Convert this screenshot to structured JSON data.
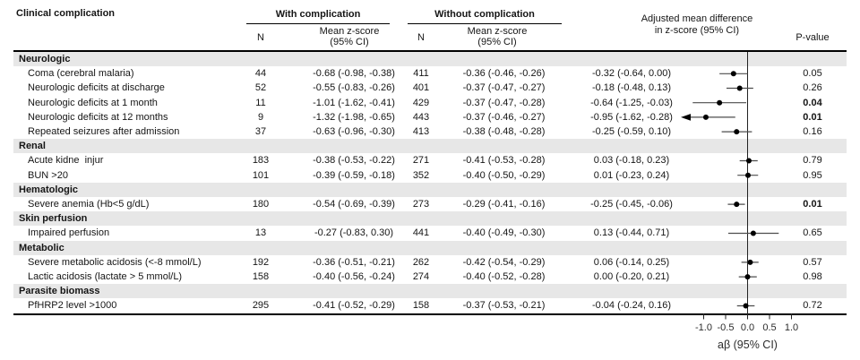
{
  "header": {
    "clinical_complication": "Clinical complication",
    "with_group": "With complication",
    "without_group": "Without complication",
    "n_with": "N",
    "n_without": "N",
    "mean_line1": "Mean z-score",
    "mean_line2": "(95% CI)",
    "adjusted_line1": "Adjusted mean difference",
    "adjusted_line2": "in z-score (95% CI)",
    "pvalue": "P-value"
  },
  "axis": {
    "tick_labels": [
      "-1.0",
      "-0.5",
      "0.0",
      "0.5",
      "1.0"
    ],
    "tick_values": [
      -1.0,
      -0.5,
      0.0,
      0.5,
      1.0
    ],
    "label": "aβ (95% CI)"
  },
  "colors": {
    "section_bg": "#e7e7e7",
    "text": "#151515",
    "ci_line": "#4d4d4d",
    "point": "#000000",
    "axis_line": "#222222"
  },
  "chart_data": {
    "type": "forest",
    "xlabel": "aβ (95% CI)",
    "xticks": [
      -1.0,
      -0.5,
      0.0,
      0.5,
      1.0
    ],
    "xlim": [
      -1.55,
      1.1
    ],
    "rows": [
      {
        "type": "section",
        "label": "Neurologic"
      },
      {
        "type": "data",
        "label": "Coma (cerebral malaria)",
        "n_with": "44",
        "mean_with": "-0.68 (-0.98, -0.38)",
        "n_without": "411",
        "mean_without": "-0.36 (-0.46, -0.26)",
        "adjusted": "-0.32 (-0.64, 0.00)",
        "est": -0.32,
        "lo": -0.64,
        "hi": 0.0,
        "p": "0.05",
        "p_bold": false
      },
      {
        "type": "data",
        "label": "Neurologic deficits at discharge",
        "n_with": "52",
        "mean_with": "-0.55 (-0.83, -0.26)",
        "n_without": "401",
        "mean_without": "-0.37 (-0.47, -0.27)",
        "adjusted": "-0.18 (-0.48, 0.13)",
        "est": -0.18,
        "lo": -0.48,
        "hi": 0.13,
        "p": "0.26",
        "p_bold": false
      },
      {
        "type": "data",
        "label": "Neurologic deficits at 1 month",
        "n_with": "11",
        "mean_with": "-1.01 (-1.62, -0.41)",
        "n_without": "429",
        "mean_without": "-0.37 (-0.47, -0.28)",
        "adjusted": "-0.64 (-1.25, -0.03)",
        "est": -0.64,
        "lo": -1.25,
        "hi": -0.03,
        "p": "0.04",
        "p_bold": true
      },
      {
        "type": "data",
        "label": "Neurologic deficits at 12 months",
        "n_with": "9",
        "mean_with": "-1.32 (-1.98, -0.65)",
        "n_without": "443",
        "mean_without": "-0.37 (-0.46, -0.27)",
        "adjusted": "-0.95 (-1.62, -0.28)",
        "est": -0.95,
        "lo": -1.62,
        "hi": -0.28,
        "p": "0.01",
        "p_bold": true
      },
      {
        "type": "data",
        "label": "Repeated seizures after admission",
        "n_with": "37",
        "mean_with": "-0.63 (-0.96, -0.30)",
        "n_without": "413",
        "mean_without": "-0.38 (-0.48, -0.28)",
        "adjusted": "-0.25 (-0.59, 0.10)",
        "est": -0.25,
        "lo": -0.59,
        "hi": 0.1,
        "p": "0.16",
        "p_bold": false
      },
      {
        "type": "section",
        "label": "Renal"
      },
      {
        "type": "data",
        "label": "Acute kidne  injur",
        "n_with": "183",
        "mean_with": "-0.38 (-0.53, -0.22)",
        "n_without": "271",
        "mean_without": "-0.41 (-0.53, -0.28)",
        "adjusted": "0.03 (-0.18, 0.23)",
        "est": 0.03,
        "lo": -0.18,
        "hi": 0.23,
        "p": "0.79",
        "p_bold": false
      },
      {
        "type": "data",
        "label": "BUN >20",
        "n_with": "101",
        "mean_with": "-0.39 (-0.59, -0.18)",
        "n_without": "352",
        "mean_without": "-0.40 (-0.50, -0.29)",
        "adjusted": "0.01 (-0.23, 0.24)",
        "est": 0.01,
        "lo": -0.23,
        "hi": 0.24,
        "p": "0.95",
        "p_bold": false
      },
      {
        "type": "section",
        "label": "Hematologic"
      },
      {
        "type": "data",
        "label": "Severe anemia (Hb<5 g/dL)",
        "n_with": "180",
        "mean_with": "-0.54 (-0.69, -0.39)",
        "n_without": "273",
        "mean_without": "-0.29 (-0.41, -0.16)",
        "adjusted": "-0.25 (-0.45, -0.06)",
        "est": -0.25,
        "lo": -0.45,
        "hi": -0.06,
        "p": "0.01",
        "p_bold": true
      },
      {
        "type": "section",
        "label": "Skin perfusion"
      },
      {
        "type": "data",
        "label": "Impaired perfusion",
        "n_with": "13",
        "mean_with": "-0.27 (-0.83, 0.30)",
        "n_without": "441",
        "mean_without": "-0.40 (-0.49, -0.30)",
        "adjusted": "0.13 (-0.44, 0.71)",
        "est": 0.13,
        "lo": -0.44,
        "hi": 0.71,
        "p": "0.65",
        "p_bold": false
      },
      {
        "type": "section",
        "label": "Metabolic"
      },
      {
        "type": "data",
        "label": "Severe metabolic acidosis (<-8 mmol/L)",
        "n_with": "192",
        "mean_with": "-0.36 (-0.51, -0.21)",
        "n_without": "262",
        "mean_without": "-0.42 (-0.54, -0.29)",
        "adjusted": "0.06 (-0.14, 0.25)",
        "est": 0.06,
        "lo": -0.14,
        "hi": 0.25,
        "p": "0.57",
        "p_bold": false
      },
      {
        "type": "data",
        "label": "Lactic acidosis (lactate > 5 mmol/L)",
        "n_with": "158",
        "mean_with": "-0.40 (-0.56, -0.24)",
        "n_without": "274",
        "mean_without": "-0.40 (-0.52, -0.28)",
        "adjusted": "0.00 (-0.20, 0.21)",
        "est": 0.0,
        "lo": -0.2,
        "hi": 0.21,
        "p": "0.98",
        "p_bold": false
      },
      {
        "type": "section",
        "label": "Parasite biomass"
      },
      {
        "type": "data",
        "label": "PfHRP2 level >1000",
        "n_with": "295",
        "mean_with": "-0.41 (-0.52, -0.29)",
        "n_without": "158",
        "mean_without": "-0.37 (-0.53, -0.21)",
        "adjusted": "-0.04 (-0.24, 0.16)",
        "est": -0.04,
        "lo": -0.24,
        "hi": 0.16,
        "p": "0.72",
        "p_bold": false
      }
    ]
  }
}
